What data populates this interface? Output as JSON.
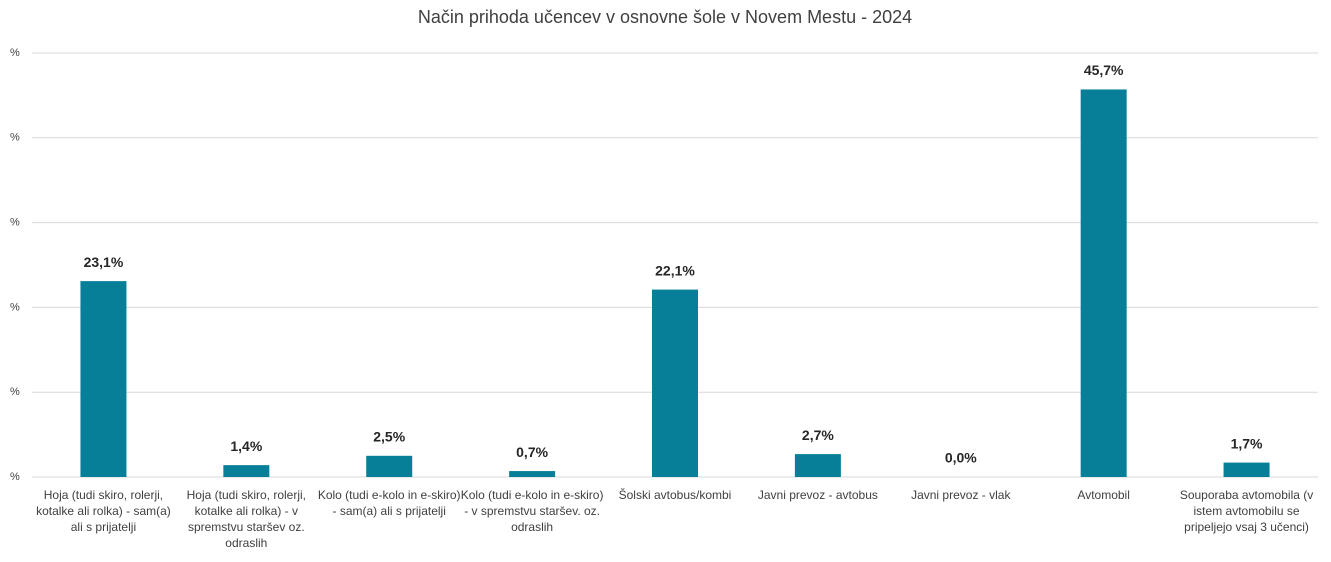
{
  "chart_data": {
    "type": "bar",
    "title": "Način prihoda učencev v osnovne šole v Novem Mestu - 2024",
    "categories": [
      "Hoja (tudi skiro, rolerji, kotalke ali rolka) - sam(a) ali s prijatelji",
      "Hoja (tudi skiro, rolerji, kotalke ali rolka) - v spremstvu staršev oz. odraslih",
      "Kolo (tudi e-kolo in e-skiro) - sam(a) ali s prijatelji",
      "Kolo (tudi e-kolo in e-skiro) - v spremstvu staršev. oz. odraslih",
      "Šolski avtobus/kombi",
      "Javni prevoz - avtobus",
      "Javni prevoz - vlak",
      "Avtomobil",
      "Souporaba avtomobila (v istem avtomobilu se pripeljejo vsaj 3 učenci)"
    ],
    "values": [
      23.1,
      1.4,
      2.5,
      0.7,
      22.1,
      2.7,
      0.0,
      45.7,
      1.7
    ],
    "value_labels": [
      "23,1%",
      "1,4%",
      "2,5%",
      "0,7%",
      "22,1%",
      "2,7%",
      "0,0%",
      "45,7%",
      "1,7%"
    ],
    "color": "#077f99",
    "ylim": [
      0,
      50
    ],
    "yticks": [
      {
        "value": 0,
        "label": "%"
      },
      {
        "value": 10,
        "label": "%"
      },
      {
        "value": 20,
        "label": "%"
      },
      {
        "value": 30,
        "label": "%"
      },
      {
        "value": 40,
        "label": "%"
      },
      {
        "value": 50,
        "label": "%"
      }
    ],
    "grid": true
  }
}
